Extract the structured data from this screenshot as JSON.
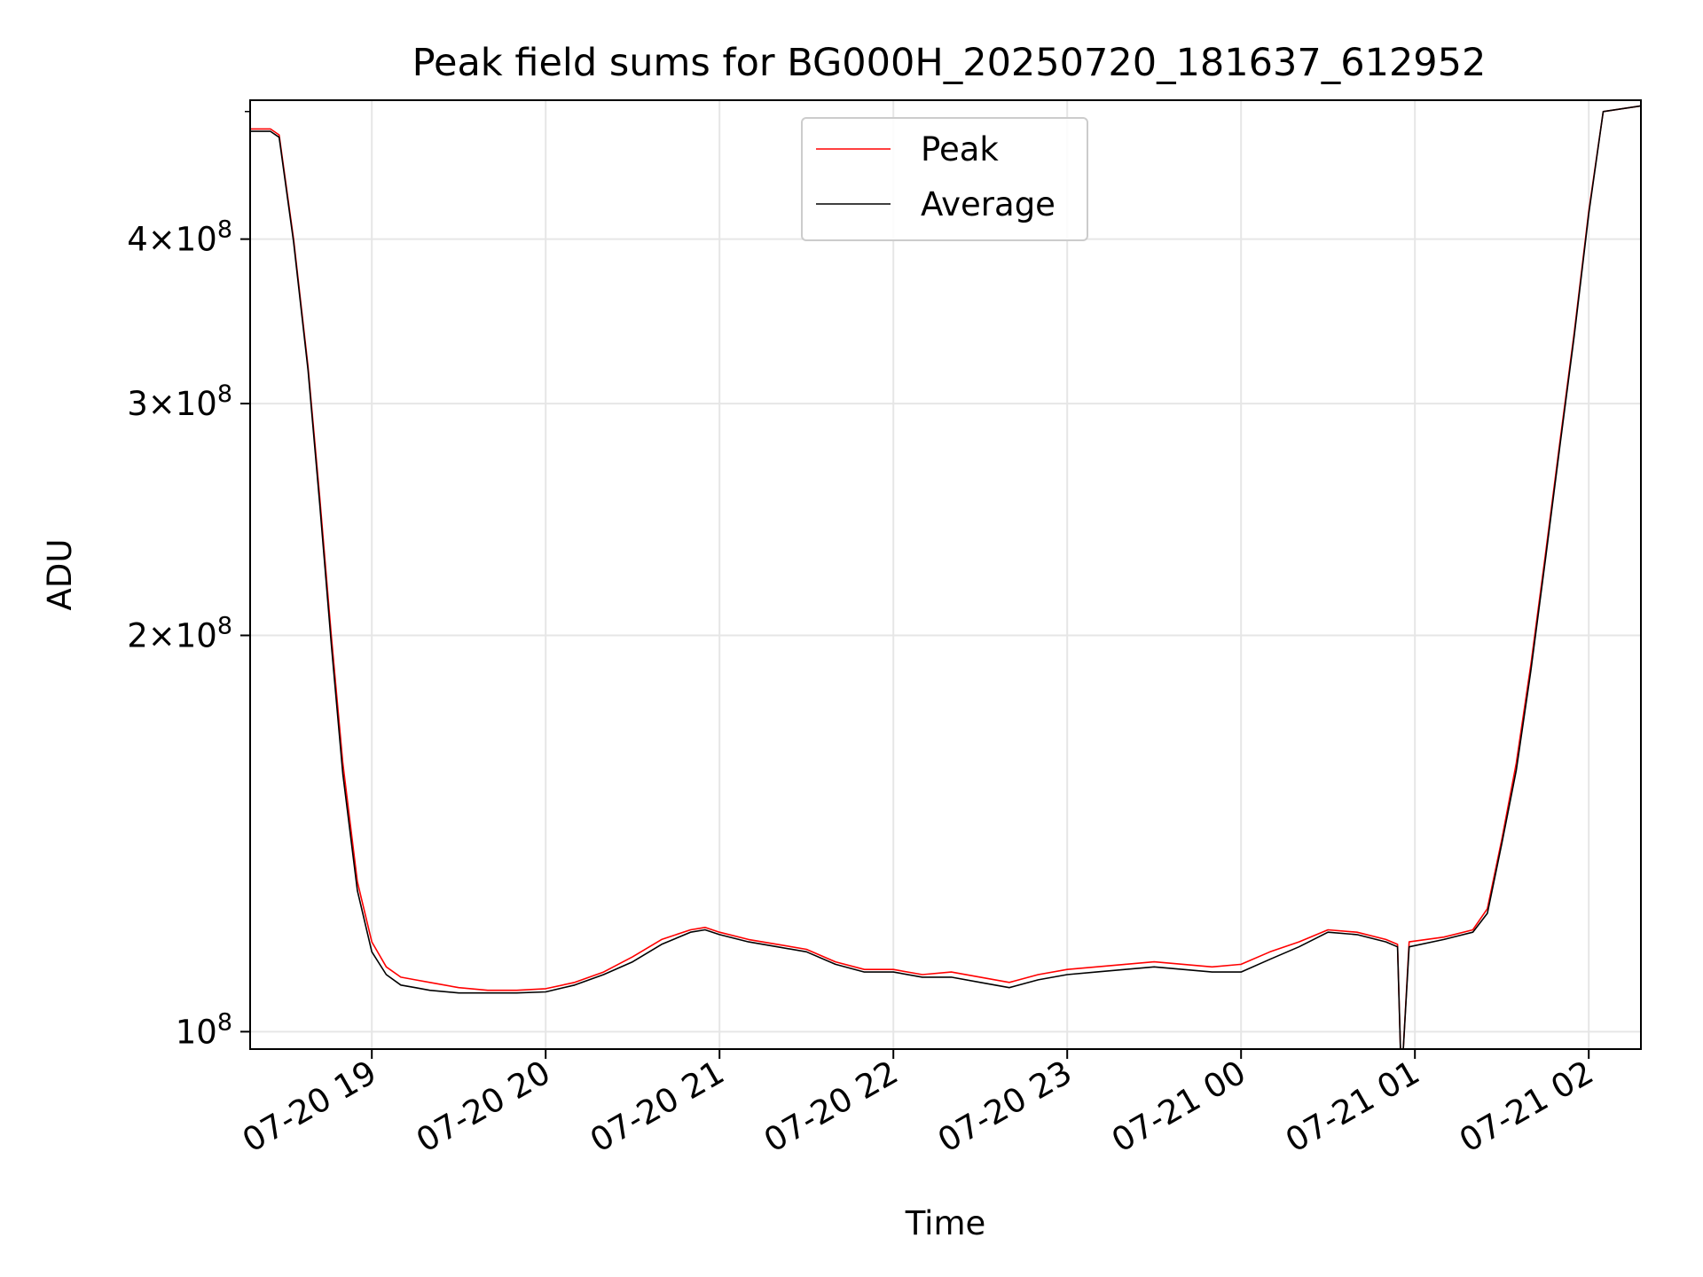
{
  "chart_data": {
    "type": "line",
    "title": "Peak field sums for BG000H_20250720_181637_612952",
    "xlabel": "Time",
    "ylabel": "ADU",
    "xscale": "time",
    "yscale": "log",
    "x_range": [
      "2025-07-20 18:18",
      "2025-07-21 02:18"
    ],
    "ylim": [
      97000000,
      510000000
    ],
    "xticks": [
      "07-20 19",
      "07-20 20",
      "07-20 21",
      "07-20 22",
      "07-20 23",
      "07-21 00",
      "07-21 01",
      "07-21 02"
    ],
    "yticks": [
      {
        "value": 100000000,
        "mantissa": "",
        "base": "10",
        "exp": "8"
      },
      {
        "value": 200000000,
        "mantissa": "2",
        "base": "10",
        "exp": "8"
      },
      {
        "value": 300000000,
        "mantissa": "3",
        "base": "10",
        "exp": "8"
      },
      {
        "value": 400000000,
        "mantissa": "4",
        "base": "10",
        "exp": "8"
      }
    ],
    "grid": true,
    "legend": {
      "position": "top-center"
    },
    "series": [
      {
        "name": "Peak",
        "color": "#ff0000",
        "x": [
          "2025-07-20 18:18",
          "2025-07-20 18:25",
          "2025-07-20 18:28",
          "2025-07-20 18:33",
          "2025-07-20 18:38",
          "2025-07-20 18:42",
          "2025-07-20 18:46",
          "2025-07-20 18:50",
          "2025-07-20 18:55",
          "2025-07-20 19:00",
          "2025-07-20 19:05",
          "2025-07-20 19:10",
          "2025-07-20 19:15",
          "2025-07-20 19:20",
          "2025-07-20 19:30",
          "2025-07-20 19:40",
          "2025-07-20 19:50",
          "2025-07-20 20:00",
          "2025-07-20 20:10",
          "2025-07-20 20:20",
          "2025-07-20 20:30",
          "2025-07-20 20:40",
          "2025-07-20 20:50",
          "2025-07-20 20:55",
          "2025-07-20 21:00",
          "2025-07-20 21:10",
          "2025-07-20 21:20",
          "2025-07-20 21:30",
          "2025-07-20 21:40",
          "2025-07-20 21:50",
          "2025-07-20 22:00",
          "2025-07-20 22:10",
          "2025-07-20 22:20",
          "2025-07-20 22:30",
          "2025-07-20 22:40",
          "2025-07-20 22:50",
          "2025-07-20 23:00",
          "2025-07-20 23:10",
          "2025-07-20 23:20",
          "2025-07-20 23:30",
          "2025-07-20 23:40",
          "2025-07-20 23:50",
          "2025-07-21 00:00",
          "2025-07-21 00:10",
          "2025-07-21 00:20",
          "2025-07-21 00:30",
          "2025-07-21 00:40",
          "2025-07-21 00:50",
          "2025-07-21 00:54",
          "2025-07-21 00:55",
          "2025-07-21 00:56",
          "2025-07-21 00:58",
          "2025-07-21 01:10",
          "2025-07-21 01:20",
          "2025-07-21 01:25",
          "2025-07-21 01:30",
          "2025-07-21 01:35",
          "2025-07-21 01:40",
          "2025-07-21 01:45",
          "2025-07-21 01:50",
          "2025-07-21 01:55",
          "2025-07-21 02:00",
          "2025-07-21 02:05",
          "2025-07-21 02:18"
        ],
        "y": [
          485000000,
          485000000,
          480000000,
          400000000,
          320000000,
          255000000,
          200000000,
          160000000,
          130000000,
          117000000,
          112000000,
          110000000,
          109500000,
          109000000,
          108000000,
          107500000,
          107500000,
          107800000,
          109000000,
          111000000,
          114000000,
          117500000,
          119500000,
          120000000,
          119000000,
          117500000,
          116500000,
          115500000,
          113000000,
          111500000,
          111500000,
          110500000,
          111000000,
          110000000,
          109000000,
          110500000,
          111500000,
          112000000,
          112500000,
          113000000,
          112500000,
          112000000,
          112500000,
          115000000,
          117000000,
          119500000,
          119000000,
          117500000,
          116500000,
          97000000,
          97000000,
          117000000,
          118000000,
          119500000,
          124000000,
          140000000,
          160000000,
          190000000,
          230000000,
          280000000,
          340000000,
          420000000,
          500000000,
          505000000
        ]
      },
      {
        "name": "Average",
        "color": "#000000",
        "x": [
          "2025-07-20 18:18",
          "2025-07-20 18:25",
          "2025-07-20 18:28",
          "2025-07-20 18:33",
          "2025-07-20 18:38",
          "2025-07-20 18:42",
          "2025-07-20 18:46",
          "2025-07-20 18:50",
          "2025-07-20 18:55",
          "2025-07-20 19:00",
          "2025-07-20 19:05",
          "2025-07-20 19:10",
          "2025-07-20 19:15",
          "2025-07-20 19:20",
          "2025-07-20 19:30",
          "2025-07-20 19:40",
          "2025-07-20 19:50",
          "2025-07-20 20:00",
          "2025-07-20 20:10",
          "2025-07-20 20:20",
          "2025-07-20 20:30",
          "2025-07-20 20:40",
          "2025-07-20 20:50",
          "2025-07-20 20:55",
          "2025-07-20 21:00",
          "2025-07-20 21:10",
          "2025-07-20 21:20",
          "2025-07-20 21:30",
          "2025-07-20 21:40",
          "2025-07-20 21:50",
          "2025-07-20 22:00",
          "2025-07-20 22:10",
          "2025-07-20 22:20",
          "2025-07-20 22:30",
          "2025-07-20 22:40",
          "2025-07-20 22:50",
          "2025-07-20 23:00",
          "2025-07-20 23:10",
          "2025-07-20 23:20",
          "2025-07-20 23:30",
          "2025-07-20 23:40",
          "2025-07-20 23:50",
          "2025-07-21 00:00",
          "2025-07-21 00:10",
          "2025-07-21 00:20",
          "2025-07-21 00:30",
          "2025-07-21 00:40",
          "2025-07-21 00:50",
          "2025-07-21 00:54",
          "2025-07-21 00:55",
          "2025-07-21 00:56",
          "2025-07-21 00:58",
          "2025-07-21 01:10",
          "2025-07-21 01:20",
          "2025-07-21 01:25",
          "2025-07-21 01:30",
          "2025-07-21 01:35",
          "2025-07-21 01:40",
          "2025-07-21 01:45",
          "2025-07-21 01:50",
          "2025-07-21 01:55",
          "2025-07-21 02:00",
          "2025-07-21 02:05",
          "2025-07-21 02:18"
        ],
        "y": [
          483000000,
          483000000,
          478000000,
          398000000,
          318000000,
          252000000,
          197000000,
          157000000,
          128000000,
          115000000,
          110500000,
          108500000,
          108000000,
          107500000,
          107000000,
          107000000,
          107000000,
          107200000,
          108500000,
          110500000,
          113000000,
          116500000,
          119000000,
          119500000,
          118500000,
          117000000,
          116000000,
          115000000,
          112500000,
          111000000,
          111000000,
          110000000,
          110000000,
          109000000,
          108000000,
          109500000,
          110500000,
          111000000,
          111500000,
          112000000,
          111500000,
          111000000,
          111000000,
          113500000,
          116000000,
          119000000,
          118500000,
          117000000,
          116000000,
          97000000,
          97000000,
          116000000,
          117500000,
          119000000,
          123000000,
          139000000,
          158000000,
          188000000,
          228000000,
          278000000,
          338000000,
          418000000,
          500000000,
          505000000
        ]
      }
    ]
  }
}
